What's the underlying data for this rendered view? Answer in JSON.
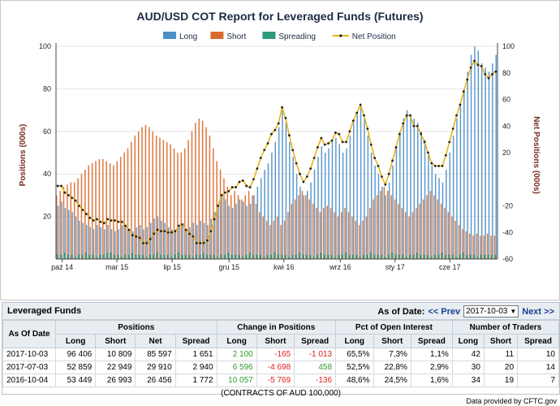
{
  "chart": {
    "title": "AUD/USD COT Report for Leveraged Funds (Futures)",
    "y_left_label": "Positions (000s)",
    "y_right_label": "Net Positions (000s)",
    "x_labels": [
      "paź 14",
      "mar 15",
      "lip 15",
      "gru 15",
      "kwi 16",
      "wrz 16",
      "sty 17",
      "cze 17"
    ],
    "y_left_ticks": [
      "100",
      "80",
      "60",
      "40",
      "20"
    ],
    "y_right_ticks": [
      "100",
      "80",
      "60",
      "40",
      "20",
      "-20",
      "-40",
      "-60"
    ],
    "legend": [
      {
        "label": "Long",
        "color": "#4d8fc7",
        "kind": "bar"
      },
      {
        "label": "Short",
        "color": "#d9692c",
        "kind": "bar"
      },
      {
        "label": "Spreading",
        "color": "#2a9a7a",
        "kind": "bar"
      },
      {
        "label": "Net Position",
        "color": "#e8b516",
        "kind": "line"
      }
    ]
  },
  "chart_data": {
    "type": "bar",
    "title": "AUD/USD COT Report for Leveraged Funds (Futures)",
    "ylabel": "Positions (000s)",
    "y2label": "Net Positions (000s)",
    "ylim": [
      0,
      100
    ],
    "y2lim": [
      -60,
      100
    ],
    "frequency": "weekly",
    "series": [
      {
        "name": "Long",
        "color": "#4d8fc7",
        "values": [
          25,
          27,
          24,
          23,
          22,
          20,
          18,
          17,
          16,
          15,
          14,
          16,
          15,
          14,
          16,
          14,
          13,
          14,
          16,
          15,
          14,
          13,
          15,
          16,
          14,
          15,
          17,
          19,
          20,
          18,
          17,
          15,
          14,
          13,
          15,
          16,
          14,
          15,
          17,
          16,
          18,
          17,
          16,
          19,
          22,
          26,
          30,
          28,
          25,
          24,
          26,
          28,
          27,
          25,
          26,
          30,
          34,
          38,
          42,
          45,
          50,
          55,
          62,
          70,
          64,
          55,
          48,
          40,
          34,
          30,
          32,
          36,
          42,
          48,
          53,
          50,
          52,
          55,
          57,
          54,
          50,
          52,
          58,
          64,
          68,
          72,
          66,
          58,
          50,
          44,
          40,
          34,
          30,
          36,
          44,
          52,
          60,
          66,
          70,
          68,
          66,
          64,
          60,
          56,
          50,
          44,
          40,
          38,
          36,
          42,
          50,
          58,
          66,
          72,
          80,
          88,
          96,
          100,
          98,
          92,
          90,
          88,
          92,
          96
        ]
      },
      {
        "name": "Short",
        "color": "#d9692c",
        "values": [
          30,
          32,
          34,
          35,
          36,
          36,
          38,
          40,
          42,
          44,
          45,
          46,
          47,
          47,
          46,
          45,
          44,
          46,
          48,
          50,
          52,
          55,
          58,
          60,
          62,
          63,
          62,
          60,
          58,
          57,
          56,
          55,
          54,
          52,
          50,
          50,
          52,
          56,
          60,
          64,
          66,
          65,
          62,
          58,
          52,
          46,
          42,
          38,
          34,
          30,
          32,
          30,
          28,
          30,
          32,
          30,
          26,
          22,
          20,
          18,
          16,
          18,
          20,
          16,
          18,
          22,
          26,
          28,
          30,
          32,
          30,
          28,
          26,
          24,
          22,
          24,
          25,
          24,
          22,
          20,
          22,
          24,
          22,
          20,
          18,
          16,
          18,
          20,
          24,
          28,
          30,
          32,
          34,
          32,
          30,
          28,
          26,
          24,
          22,
          20,
          22,
          24,
          26,
          28,
          30,
          32,
          30,
          28,
          26,
          24,
          22,
          20,
          18,
          16,
          14,
          13,
          12,
          11,
          12,
          11,
          11,
          12,
          11,
          11
        ]
      },
      {
        "name": "Spreading",
        "color": "#2a9a7a",
        "values": [
          2,
          2,
          3,
          2,
          2,
          1,
          2,
          2,
          3,
          2,
          2,
          1,
          2,
          2,
          3,
          3,
          2,
          2,
          1,
          2,
          2,
          3,
          2,
          2,
          2,
          1,
          2,
          2,
          3,
          2,
          2,
          2,
          1,
          2,
          3,
          2,
          2,
          2,
          1,
          2,
          2,
          3,
          2,
          2,
          2,
          1,
          2,
          2,
          3,
          2,
          2,
          2,
          1,
          2,
          3,
          2,
          2,
          2,
          1,
          2,
          2,
          3,
          2,
          2,
          2,
          1,
          2,
          2,
          3,
          2,
          2,
          2,
          1,
          2,
          3,
          2,
          2,
          2,
          1,
          2,
          2,
          3,
          2,
          2,
          2,
          1,
          2,
          2,
          3,
          2,
          2,
          2,
          1,
          2,
          3,
          2,
          2,
          2,
          1,
          2,
          2,
          3,
          2,
          2,
          2,
          1,
          2,
          2,
          3,
          2,
          2,
          2,
          1,
          2,
          3,
          2,
          2,
          2,
          1,
          2,
          2,
          2,
          2,
          2
        ]
      },
      {
        "name": "Net Position",
        "color": "#e8b516",
        "values": [
          -5,
          -5,
          -10,
          -12,
          -14,
          -16,
          -20,
          -23,
          -26,
          -29,
          -31,
          -30,
          -32,
          -33,
          -30,
          -31,
          -31,
          -32,
          -32,
          -35,
          -38,
          -42,
          -43,
          -44,
          -48,
          -48,
          -45,
          -41,
          -38,
          -39,
          -39,
          -40,
          -40,
          -39,
          -35,
          -34,
          -38,
          -41,
          -43,
          -48,
          -48,
          -48,
          -46,
          -39,
          -30,
          -20,
          -12,
          -10,
          -9,
          -6,
          -6,
          -2,
          -1,
          -5,
          -6,
          0,
          8,
          16,
          22,
          27,
          34,
          37,
          42,
          54,
          46,
          33,
          22,
          12,
          4,
          -2,
          2,
          8,
          16,
          24,
          31,
          26,
          27,
          29,
          35,
          34,
          28,
          28,
          36,
          44,
          50,
          56,
          48,
          38,
          26,
          16,
          10,
          2,
          -4,
          4,
          14,
          24,
          34,
          42,
          48,
          48,
          40,
          40,
          34,
          28,
          20,
          12,
          10,
          10,
          10,
          18,
          28,
          38,
          48,
          56,
          66,
          75,
          84,
          89,
          86,
          85,
          79,
          76,
          79,
          81
        ]
      }
    ]
  },
  "table": {
    "title": "Leveraged Funds",
    "as_of_label": "As of Date:",
    "prev_label": "<< Prev",
    "selected_date": "2017-10-03",
    "next_label": "Next >>",
    "groups": [
      "As Of Date",
      "Positions",
      "Change in Positions",
      "Pct of Open Interest",
      "Number of Traders"
    ],
    "columns": [
      "Long",
      "Short",
      "Net",
      "Spread",
      "Long",
      "Short",
      "Spread",
      "Long",
      "Short",
      "Spread",
      "Long",
      "Short",
      "Spread"
    ],
    "rows": [
      {
        "date": "2017-10-03",
        "pos": [
          "96 406",
          "10 809",
          "85 597",
          "1 651"
        ],
        "chg": [
          "2 100",
          "-165",
          "-1 013"
        ],
        "pct": [
          "65,5%",
          "7,3%",
          "1,1%"
        ],
        "traders": [
          "42",
          "11",
          "10"
        ]
      },
      {
        "date": "2017-07-03",
        "pos": [
          "52 859",
          "22 949",
          "29 910",
          "2 940"
        ],
        "chg": [
          "6 596",
          "-4 698",
          "458"
        ],
        "pct": [
          "52,5%",
          "22,8%",
          "2,9%"
        ],
        "traders": [
          "30",
          "20",
          "14"
        ]
      },
      {
        "date": "2016-10-04",
        "pos": [
          "53 449",
          "26 993",
          "26 456",
          "1 772"
        ],
        "chg": [
          "10 057",
          "-5 769",
          "-136"
        ],
        "pct": [
          "48,6%",
          "24,5%",
          "1,6%"
        ],
        "traders": [
          "34",
          "19",
          "7"
        ]
      }
    ],
    "footnote": "(CONTRACTS OF AUD 100,000)"
  },
  "credit": "Data provided by CFTC.gov"
}
